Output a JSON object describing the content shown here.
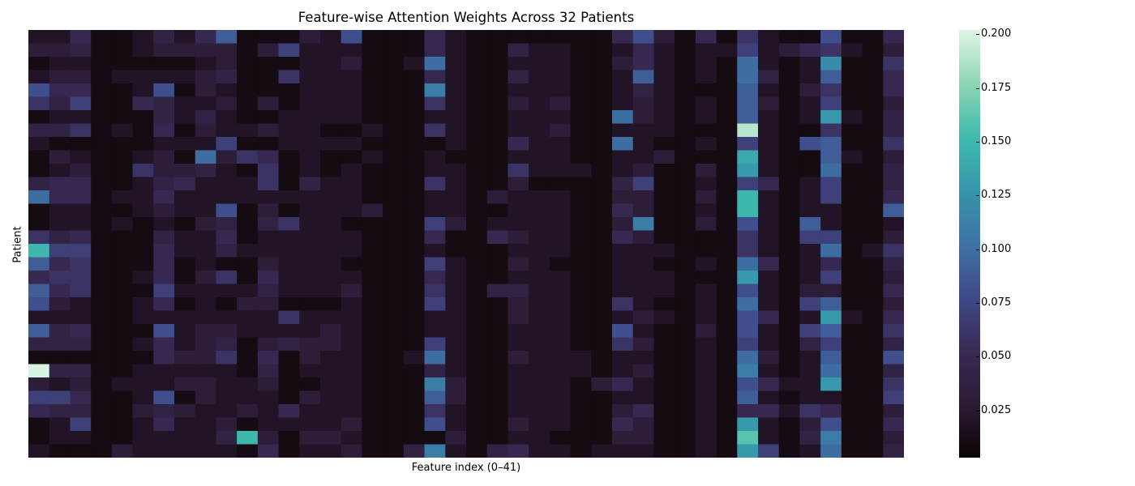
{
  "chart_data": {
    "type": "heatmap",
    "title": "Feature-wise Attention Weights Across 32 Patients",
    "xlabel": "Feature index (0–41)",
    "ylabel": "Patient",
    "n_rows": 32,
    "n_cols": 42,
    "colormap": "mako",
    "vmin": 0.003,
    "vmax": 0.202,
    "colorbar_ticks": [
      0.025,
      0.05,
      0.075,
      0.1,
      0.125,
      0.15,
      0.175,
      0.2
    ],
    "colorbar_tick_labels": [
      "0.025",
      "0.050",
      "0.075",
      "0.100",
      "0.125",
      "0.150",
      "0.175",
      "0.200"
    ],
    "values": [
      [
        0.02,
        0.02,
        0.05,
        0.01,
        0.01,
        0.02,
        0.04,
        0.02,
        0.05,
        0.09,
        0.01,
        0.01,
        0.01,
        0.03,
        0.02,
        0.08,
        0.01,
        0.01,
        0.01,
        0.05,
        0.02,
        0.01,
        0.01,
        0.01,
        0.01,
        0.01,
        0.01,
        0.01,
        0.05,
        0.08,
        0.03,
        0.01,
        0.05,
        0.01,
        0.06,
        0.02,
        0.01,
        0.01,
        0.08,
        0.01,
        0.01,
        0.05
      ],
      [
        0.03,
        0.03,
        0.04,
        0.01,
        0.01,
        0.02,
        0.03,
        0.03,
        0.03,
        0.03,
        0.01,
        0.03,
        0.07,
        0.02,
        0.02,
        0.02,
        0.01,
        0.01,
        0.01,
        0.05,
        0.02,
        0.01,
        0.01,
        0.04,
        0.02,
        0.02,
        0.01,
        0.01,
        0.02,
        0.05,
        0.02,
        0.01,
        0.02,
        0.02,
        0.07,
        0.02,
        0.03,
        0.05,
        0.06,
        0.02,
        0.01,
        0.03
      ],
      [
        0.01,
        0.02,
        0.02,
        0.01,
        0.01,
        0.01,
        0.01,
        0.01,
        0.02,
        0.03,
        0.01,
        0.01,
        0.01,
        0.02,
        0.02,
        0.03,
        0.01,
        0.01,
        0.02,
        0.1,
        0.02,
        0.01,
        0.01,
        0.02,
        0.02,
        0.02,
        0.01,
        0.01,
        0.03,
        0.05,
        0.02,
        0.01,
        0.02,
        0.01,
        0.1,
        0.02,
        0.01,
        0.02,
        0.12,
        0.01,
        0.01,
        0.06
      ],
      [
        0.02,
        0.03,
        0.03,
        0.01,
        0.02,
        0.02,
        0.02,
        0.02,
        0.03,
        0.04,
        0.01,
        0.01,
        0.06,
        0.02,
        0.02,
        0.02,
        0.01,
        0.01,
        0.01,
        0.05,
        0.02,
        0.01,
        0.01,
        0.04,
        0.02,
        0.02,
        0.01,
        0.01,
        0.02,
        0.09,
        0.02,
        0.01,
        0.02,
        0.01,
        0.1,
        0.04,
        0.01,
        0.02,
        0.09,
        0.01,
        0.01,
        0.05
      ],
      [
        0.08,
        0.05,
        0.05,
        0.01,
        0.01,
        0.02,
        0.08,
        0.01,
        0.03,
        0.02,
        0.01,
        0.01,
        0.01,
        0.02,
        0.02,
        0.02,
        0.01,
        0.01,
        0.01,
        0.11,
        0.02,
        0.01,
        0.01,
        0.02,
        0.02,
        0.02,
        0.01,
        0.01,
        0.02,
        0.04,
        0.02,
        0.01,
        0.01,
        0.01,
        0.09,
        0.02,
        0.01,
        0.03,
        0.06,
        0.01,
        0.01,
        0.05
      ],
      [
        0.06,
        0.04,
        0.07,
        0.01,
        0.01,
        0.05,
        0.04,
        0.02,
        0.02,
        0.03,
        0.01,
        0.03,
        0.01,
        0.02,
        0.02,
        0.02,
        0.01,
        0.01,
        0.01,
        0.06,
        0.02,
        0.01,
        0.01,
        0.03,
        0.02,
        0.03,
        0.01,
        0.01,
        0.02,
        0.03,
        0.02,
        0.01,
        0.02,
        0.01,
        0.09,
        0.03,
        0.01,
        0.02,
        0.07,
        0.01,
        0.01,
        0.03
      ],
      [
        0.01,
        0.02,
        0.02,
        0.01,
        0.01,
        0.01,
        0.04,
        0.02,
        0.04,
        0.02,
        0.01,
        0.01,
        0.02,
        0.02,
        0.02,
        0.02,
        0.01,
        0.01,
        0.01,
        0.02,
        0.02,
        0.01,
        0.01,
        0.02,
        0.02,
        0.02,
        0.01,
        0.01,
        0.1,
        0.03,
        0.02,
        0.01,
        0.02,
        0.01,
        0.09,
        0.02,
        0.01,
        0.02,
        0.13,
        0.02,
        0.01,
        0.04
      ],
      [
        0.04,
        0.04,
        0.06,
        0.01,
        0.02,
        0.01,
        0.05,
        0.01,
        0.03,
        0.02,
        0.02,
        0.03,
        0.02,
        0.02,
        0.01,
        0.01,
        0.02,
        0.01,
        0.01,
        0.06,
        0.02,
        0.01,
        0.01,
        0.02,
        0.02,
        0.03,
        0.01,
        0.01,
        0.02,
        0.02,
        0.02,
        0.01,
        0.01,
        0.01,
        0.19,
        0.02,
        0.01,
        0.01,
        0.06,
        0.01,
        0.01,
        0.04
      ],
      [
        0.02,
        0.01,
        0.01,
        0.01,
        0.01,
        0.01,
        0.02,
        0.02,
        0.02,
        0.07,
        0.01,
        0.01,
        0.02,
        0.02,
        0.02,
        0.02,
        0.01,
        0.01,
        0.01,
        0.01,
        0.02,
        0.01,
        0.01,
        0.05,
        0.02,
        0.02,
        0.01,
        0.01,
        0.1,
        0.02,
        0.01,
        0.01,
        0.02,
        0.01,
        0.07,
        0.02,
        0.01,
        0.08,
        0.09,
        0.01,
        0.01,
        0.06
      ],
      [
        0.01,
        0.03,
        0.02,
        0.01,
        0.01,
        0.02,
        0.03,
        0.01,
        0.1,
        0.03,
        0.06,
        0.05,
        0.01,
        0.02,
        0.01,
        0.01,
        0.02,
        0.01,
        0.01,
        0.02,
        0.01,
        0.01,
        0.01,
        0.02,
        0.02,
        0.02,
        0.01,
        0.01,
        0.02,
        0.02,
        0.03,
        0.01,
        0.01,
        0.01,
        0.14,
        0.02,
        0.01,
        0.01,
        0.09,
        0.02,
        0.01,
        0.03
      ],
      [
        0.01,
        0.02,
        0.03,
        0.01,
        0.01,
        0.06,
        0.03,
        0.03,
        0.04,
        0.02,
        0.01,
        0.06,
        0.01,
        0.02,
        0.01,
        0.02,
        0.01,
        0.01,
        0.01,
        0.02,
        0.02,
        0.01,
        0.01,
        0.06,
        0.02,
        0.02,
        0.02,
        0.01,
        0.02,
        0.03,
        0.01,
        0.01,
        0.03,
        0.01,
        0.13,
        0.02,
        0.01,
        0.01,
        0.1,
        0.01,
        0.01,
        0.04
      ],
      [
        0.04,
        0.05,
        0.05,
        0.01,
        0.01,
        0.02,
        0.04,
        0.05,
        0.02,
        0.02,
        0.02,
        0.06,
        0.01,
        0.04,
        0.02,
        0.02,
        0.01,
        0.01,
        0.01,
        0.06,
        0.02,
        0.01,
        0.01,
        0.03,
        0.01,
        0.01,
        0.01,
        0.01,
        0.04,
        0.07,
        0.01,
        0.01,
        0.02,
        0.01,
        0.07,
        0.05,
        0.01,
        0.02,
        0.07,
        0.01,
        0.01,
        0.04
      ],
      [
        0.1,
        0.05,
        0.05,
        0.01,
        0.02,
        0.02,
        0.05,
        0.02,
        0.02,
        0.02,
        0.02,
        0.02,
        0.02,
        0.02,
        0.02,
        0.02,
        0.01,
        0.01,
        0.01,
        0.02,
        0.02,
        0.01,
        0.03,
        0.02,
        0.02,
        0.02,
        0.01,
        0.01,
        0.03,
        0.03,
        0.01,
        0.01,
        0.03,
        0.01,
        0.15,
        0.02,
        0.01,
        0.02,
        0.07,
        0.01,
        0.01,
        0.05
      ],
      [
        0.01,
        0.02,
        0.02,
        0.01,
        0.01,
        0.02,
        0.03,
        0.02,
        0.02,
        0.08,
        0.01,
        0.03,
        0.01,
        0.02,
        0.02,
        0.02,
        0.03,
        0.01,
        0.01,
        0.02,
        0.02,
        0.01,
        0.01,
        0.02,
        0.02,
        0.02,
        0.01,
        0.01,
        0.05,
        0.03,
        0.01,
        0.01,
        0.02,
        0.01,
        0.15,
        0.02,
        0.01,
        0.02,
        0.02,
        0.01,
        0.01,
        0.09
      ],
      [
        0.01,
        0.02,
        0.02,
        0.01,
        0.02,
        0.01,
        0.02,
        0.01,
        0.03,
        0.04,
        0.01,
        0.04,
        0.06,
        0.02,
        0.02,
        0.01,
        0.01,
        0.01,
        0.01,
        0.07,
        0.03,
        0.01,
        0.02,
        0.02,
        0.02,
        0.02,
        0.01,
        0.01,
        0.03,
        0.11,
        0.01,
        0.01,
        0.03,
        0.01,
        0.08,
        0.02,
        0.01,
        0.09,
        0.02,
        0.01,
        0.01,
        0.02
      ],
      [
        0.06,
        0.04,
        0.05,
        0.01,
        0.01,
        0.01,
        0.04,
        0.02,
        0.02,
        0.05,
        0.01,
        0.02,
        0.02,
        0.02,
        0.02,
        0.02,
        0.01,
        0.01,
        0.01,
        0.05,
        0.01,
        0.01,
        0.05,
        0.03,
        0.02,
        0.02,
        0.01,
        0.01,
        0.05,
        0.03,
        0.01,
        0.01,
        0.01,
        0.01,
        0.06,
        0.02,
        0.01,
        0.07,
        0.07,
        0.01,
        0.01,
        0.03
      ],
      [
        0.15,
        0.07,
        0.07,
        0.01,
        0.01,
        0.01,
        0.05,
        0.02,
        0.02,
        0.04,
        0.02,
        0.02,
        0.02,
        0.02,
        0.02,
        0.02,
        0.01,
        0.01,
        0.01,
        0.02,
        0.01,
        0.01,
        0.01,
        0.02,
        0.02,
        0.02,
        0.01,
        0.01,
        0.02,
        0.02,
        0.02,
        0.01,
        0.01,
        0.01,
        0.06,
        0.02,
        0.01,
        0.02,
        0.1,
        0.01,
        0.02,
        0.06
      ],
      [
        0.09,
        0.05,
        0.06,
        0.01,
        0.01,
        0.01,
        0.05,
        0.01,
        0.02,
        0.01,
        0.01,
        0.03,
        0.02,
        0.02,
        0.02,
        0.01,
        0.01,
        0.01,
        0.01,
        0.07,
        0.02,
        0.01,
        0.01,
        0.03,
        0.02,
        0.01,
        0.01,
        0.01,
        0.02,
        0.02,
        0.01,
        0.01,
        0.02,
        0.01,
        0.1,
        0.05,
        0.01,
        0.02,
        0.05,
        0.01,
        0.01,
        0.04
      ],
      [
        0.05,
        0.06,
        0.06,
        0.01,
        0.01,
        0.02,
        0.05,
        0.01,
        0.03,
        0.06,
        0.01,
        0.05,
        0.02,
        0.02,
        0.02,
        0.02,
        0.01,
        0.01,
        0.01,
        0.05,
        0.02,
        0.01,
        0.01,
        0.02,
        0.02,
        0.02,
        0.01,
        0.01,
        0.02,
        0.02,
        0.02,
        0.01,
        0.01,
        0.01,
        0.13,
        0.02,
        0.01,
        0.02,
        0.07,
        0.01,
        0.01,
        0.03
      ],
      [
        0.09,
        0.05,
        0.06,
        0.01,
        0.01,
        0.01,
        0.07,
        0.02,
        0.02,
        0.02,
        0.02,
        0.04,
        0.02,
        0.02,
        0.02,
        0.03,
        0.01,
        0.01,
        0.01,
        0.06,
        0.02,
        0.01,
        0.04,
        0.04,
        0.02,
        0.02,
        0.01,
        0.01,
        0.02,
        0.02,
        0.02,
        0.01,
        0.02,
        0.01,
        0.08,
        0.02,
        0.01,
        0.03,
        0.03,
        0.01,
        0.01,
        0.05
      ],
      [
        0.08,
        0.03,
        0.02,
        0.01,
        0.01,
        0.02,
        0.05,
        0.01,
        0.02,
        0.01,
        0.03,
        0.03,
        0.01,
        0.01,
        0.01,
        0.02,
        0.01,
        0.01,
        0.01,
        0.07,
        0.02,
        0.01,
        0.01,
        0.03,
        0.02,
        0.02,
        0.01,
        0.01,
        0.06,
        0.02,
        0.01,
        0.01,
        0.02,
        0.01,
        0.1,
        0.02,
        0.01,
        0.07,
        0.09,
        0.01,
        0.01,
        0.03
      ],
      [
        0.02,
        0.02,
        0.02,
        0.01,
        0.01,
        0.02,
        0.02,
        0.02,
        0.02,
        0.02,
        0.02,
        0.02,
        0.06,
        0.02,
        0.02,
        0.02,
        0.01,
        0.01,
        0.01,
        0.02,
        0.02,
        0.01,
        0.01,
        0.03,
        0.02,
        0.02,
        0.01,
        0.01,
        0.02,
        0.03,
        0.02,
        0.01,
        0.02,
        0.01,
        0.08,
        0.05,
        0.01,
        0.02,
        0.13,
        0.02,
        0.01,
        0.05
      ],
      [
        0.09,
        0.04,
        0.05,
        0.01,
        0.01,
        0.01,
        0.08,
        0.02,
        0.03,
        0.03,
        0.02,
        0.02,
        0.02,
        0.02,
        0.03,
        0.02,
        0.01,
        0.01,
        0.01,
        0.02,
        0.02,
        0.01,
        0.01,
        0.02,
        0.02,
        0.02,
        0.01,
        0.01,
        0.08,
        0.02,
        0.01,
        0.01,
        0.03,
        0.01,
        0.08,
        0.02,
        0.01,
        0.07,
        0.09,
        0.01,
        0.01,
        0.06
      ],
      [
        0.04,
        0.04,
        0.04,
        0.01,
        0.01,
        0.02,
        0.05,
        0.02,
        0.03,
        0.04,
        0.01,
        0.03,
        0.04,
        0.03,
        0.03,
        0.02,
        0.01,
        0.01,
        0.01,
        0.07,
        0.02,
        0.01,
        0.01,
        0.02,
        0.02,
        0.02,
        0.01,
        0.01,
        0.06,
        0.03,
        0.01,
        0.01,
        0.02,
        0.01,
        0.07,
        0.02,
        0.01,
        0.04,
        0.07,
        0.01,
        0.01,
        0.04
      ],
      [
        0.01,
        0.01,
        0.01,
        0.01,
        0.01,
        0.01,
        0.05,
        0.03,
        0.03,
        0.06,
        0.01,
        0.05,
        0.01,
        0.03,
        0.02,
        0.02,
        0.01,
        0.01,
        0.02,
        0.1,
        0.02,
        0.01,
        0.01,
        0.03,
        0.02,
        0.02,
        0.02,
        0.01,
        0.02,
        0.02,
        0.01,
        0.01,
        0.02,
        0.01,
        0.1,
        0.03,
        0.01,
        0.02,
        0.09,
        0.01,
        0.01,
        0.08
      ],
      [
        0.2,
        0.04,
        0.04,
        0.01,
        0.01,
        0.02,
        0.02,
        0.02,
        0.02,
        0.02,
        0.01,
        0.04,
        0.01,
        0.02,
        0.02,
        0.02,
        0.01,
        0.01,
        0.01,
        0.04,
        0.02,
        0.01,
        0.01,
        0.02,
        0.02,
        0.02,
        0.02,
        0.01,
        0.02,
        0.03,
        0.01,
        0.01,
        0.02,
        0.01,
        0.11,
        0.02,
        0.01,
        0.02,
        0.1,
        0.01,
        0.01,
        0.04
      ],
      [
        0.03,
        0.02,
        0.03,
        0.01,
        0.02,
        0.02,
        0.02,
        0.03,
        0.03,
        0.02,
        0.02,
        0.03,
        0.01,
        0.01,
        0.02,
        0.02,
        0.01,
        0.01,
        0.01,
        0.11,
        0.03,
        0.01,
        0.01,
        0.02,
        0.02,
        0.02,
        0.01,
        0.03,
        0.05,
        0.02,
        0.01,
        0.01,
        0.02,
        0.01,
        0.08,
        0.05,
        0.02,
        0.02,
        0.13,
        0.01,
        0.01,
        0.06
      ],
      [
        0.07,
        0.07,
        0.05,
        0.01,
        0.01,
        0.02,
        0.08,
        0.01,
        0.03,
        0.02,
        0.02,
        0.02,
        0.01,
        0.03,
        0.02,
        0.02,
        0.01,
        0.01,
        0.01,
        0.09,
        0.03,
        0.01,
        0.01,
        0.02,
        0.02,
        0.02,
        0.01,
        0.01,
        0.02,
        0.02,
        0.01,
        0.01,
        0.02,
        0.01,
        0.09,
        0.02,
        0.01,
        0.02,
        0.02,
        0.01,
        0.01,
        0.07
      ],
      [
        0.05,
        0.04,
        0.04,
        0.01,
        0.01,
        0.03,
        0.04,
        0.03,
        0.02,
        0.02,
        0.03,
        0.02,
        0.05,
        0.02,
        0.02,
        0.02,
        0.01,
        0.01,
        0.01,
        0.06,
        0.02,
        0.01,
        0.01,
        0.02,
        0.02,
        0.02,
        0.01,
        0.01,
        0.03,
        0.05,
        0.01,
        0.01,
        0.02,
        0.01,
        0.05,
        0.05,
        0.02,
        0.06,
        0.05,
        0.01,
        0.01,
        0.03
      ],
      [
        0.01,
        0.02,
        0.07,
        0.01,
        0.01,
        0.02,
        0.05,
        0.02,
        0.02,
        0.03,
        0.01,
        0.02,
        0.02,
        0.02,
        0.02,
        0.03,
        0.01,
        0.01,
        0.01,
        0.08,
        0.02,
        0.01,
        0.01,
        0.03,
        0.02,
        0.02,
        0.01,
        0.01,
        0.05,
        0.03,
        0.01,
        0.01,
        0.02,
        0.01,
        0.13,
        0.02,
        0.01,
        0.03,
        0.08,
        0.01,
        0.01,
        0.05
      ],
      [
        0.01,
        0.02,
        0.02,
        0.01,
        0.01,
        0.02,
        0.02,
        0.02,
        0.02,
        0.04,
        0.15,
        0.03,
        0.01,
        0.03,
        0.03,
        0.02,
        0.01,
        0.01,
        0.01,
        0.01,
        0.03,
        0.01,
        0.01,
        0.02,
        0.02,
        0.01,
        0.01,
        0.01,
        0.03,
        0.03,
        0.01,
        0.01,
        0.02,
        0.01,
        0.16,
        0.02,
        0.01,
        0.04,
        0.11,
        0.01,
        0.01,
        0.03
      ],
      [
        0.02,
        0.01,
        0.01,
        0.01,
        0.03,
        0.02,
        0.02,
        0.02,
        0.02,
        0.02,
        0.01,
        0.05,
        0.01,
        0.02,
        0.02,
        0.03,
        0.01,
        0.01,
        0.04,
        0.11,
        0.02,
        0.01,
        0.04,
        0.05,
        0.02,
        0.02,
        0.01,
        0.02,
        0.02,
        0.02,
        0.01,
        0.01,
        0.02,
        0.01,
        0.13,
        0.07,
        0.01,
        0.02,
        0.1,
        0.01,
        0.01,
        0.04
      ]
    ]
  }
}
